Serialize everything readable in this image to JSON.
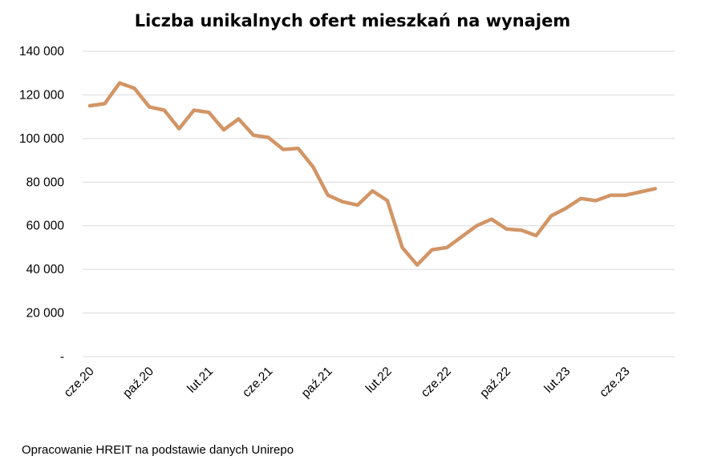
{
  "chart_data": {
    "type": "line",
    "title": "Liczba unikalnych ofert mieszkań na wynajem",
    "xlabel": "",
    "ylabel": "",
    "ylim": [
      0,
      140000
    ],
    "y_ticks": [
      0,
      20000,
      40000,
      60000,
      80000,
      100000,
      120000,
      140000
    ],
    "y_tick_labels": [
      "-",
      "20 000",
      "40 000",
      "60 000",
      "80 000",
      "100 000",
      "120 000",
      "140 000"
    ],
    "x_tick_labels": [
      {
        "index": 0,
        "label": "cze.20"
      },
      {
        "index": 4,
        "label": "paź.20"
      },
      {
        "index": 8,
        "label": "lut.21"
      },
      {
        "index": 12,
        "label": "cze.21"
      },
      {
        "index": 16,
        "label": "paź.21"
      },
      {
        "index": 20,
        "label": "lut.22"
      },
      {
        "index": 24,
        "label": "cze.22"
      },
      {
        "index": 28,
        "label": "paź.22"
      },
      {
        "index": 32,
        "label": "lut.23"
      },
      {
        "index": 36,
        "label": "cze.23"
      }
    ],
    "grid": true,
    "legend": "none",
    "series": [
      {
        "color": "#d29566",
        "values": [
          115000,
          116000,
          125500,
          123000,
          114500,
          113000,
          104500,
          113000,
          112000,
          104000,
          109000,
          101500,
          100500,
          95000,
          95500,
          87000,
          74000,
          71000,
          69500,
          76000,
          71500,
          50000,
          42000,
          49000,
          50000,
          55000,
          60000,
          63000,
          58500,
          58000,
          55500,
          64500,
          68000,
          72500,
          71500,
          74000,
          74000,
          75500,
          77000
        ]
      }
    ]
  },
  "source_note": "Opracowanie HREIT na podstawie danych Unirepo"
}
